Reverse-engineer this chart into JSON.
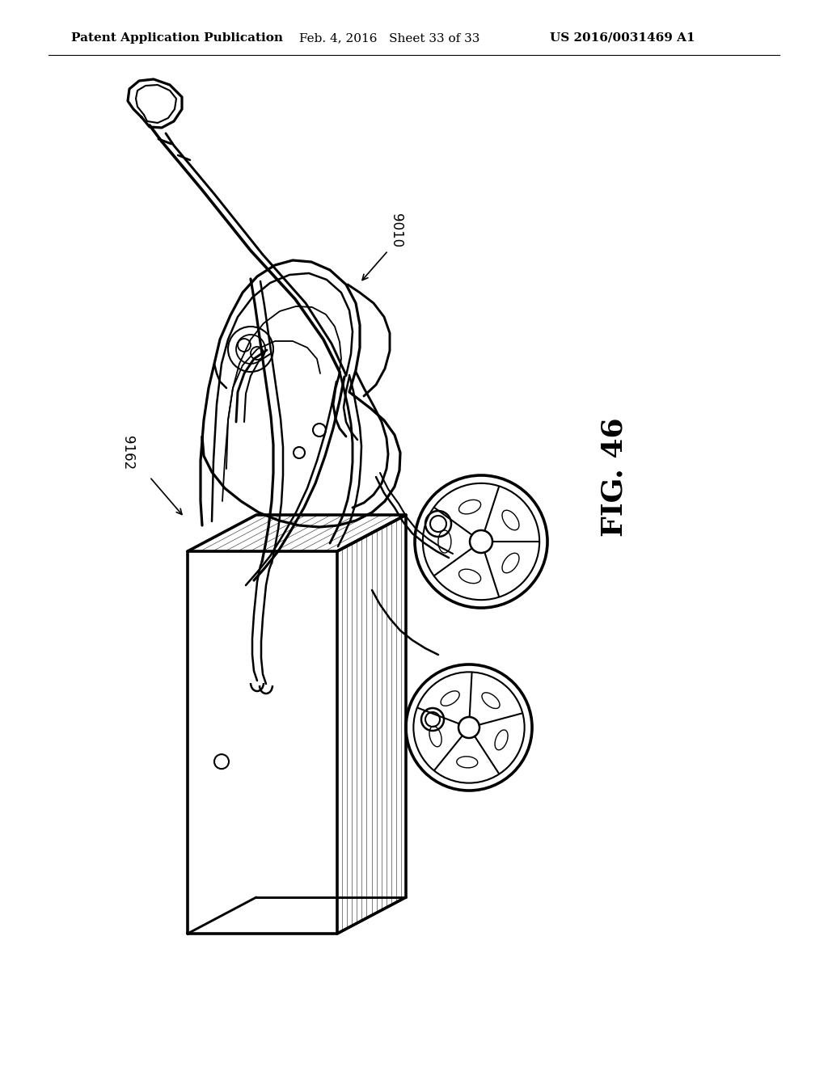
{
  "background_color": "#ffffff",
  "header_left": "Patent Application Publication",
  "header_mid": "Feb. 4, 2016   Sheet 33 of 33",
  "header_right": "US 2016/0031469 A1",
  "fig_label": "FIG. 46",
  "label_9010": "9010",
  "label_9162": "9162",
  "line_color": "#000000",
  "line_width": 1.8,
  "header_fontsize": 11,
  "fig_label_fontsize": 22,
  "annotation_fontsize": 12
}
